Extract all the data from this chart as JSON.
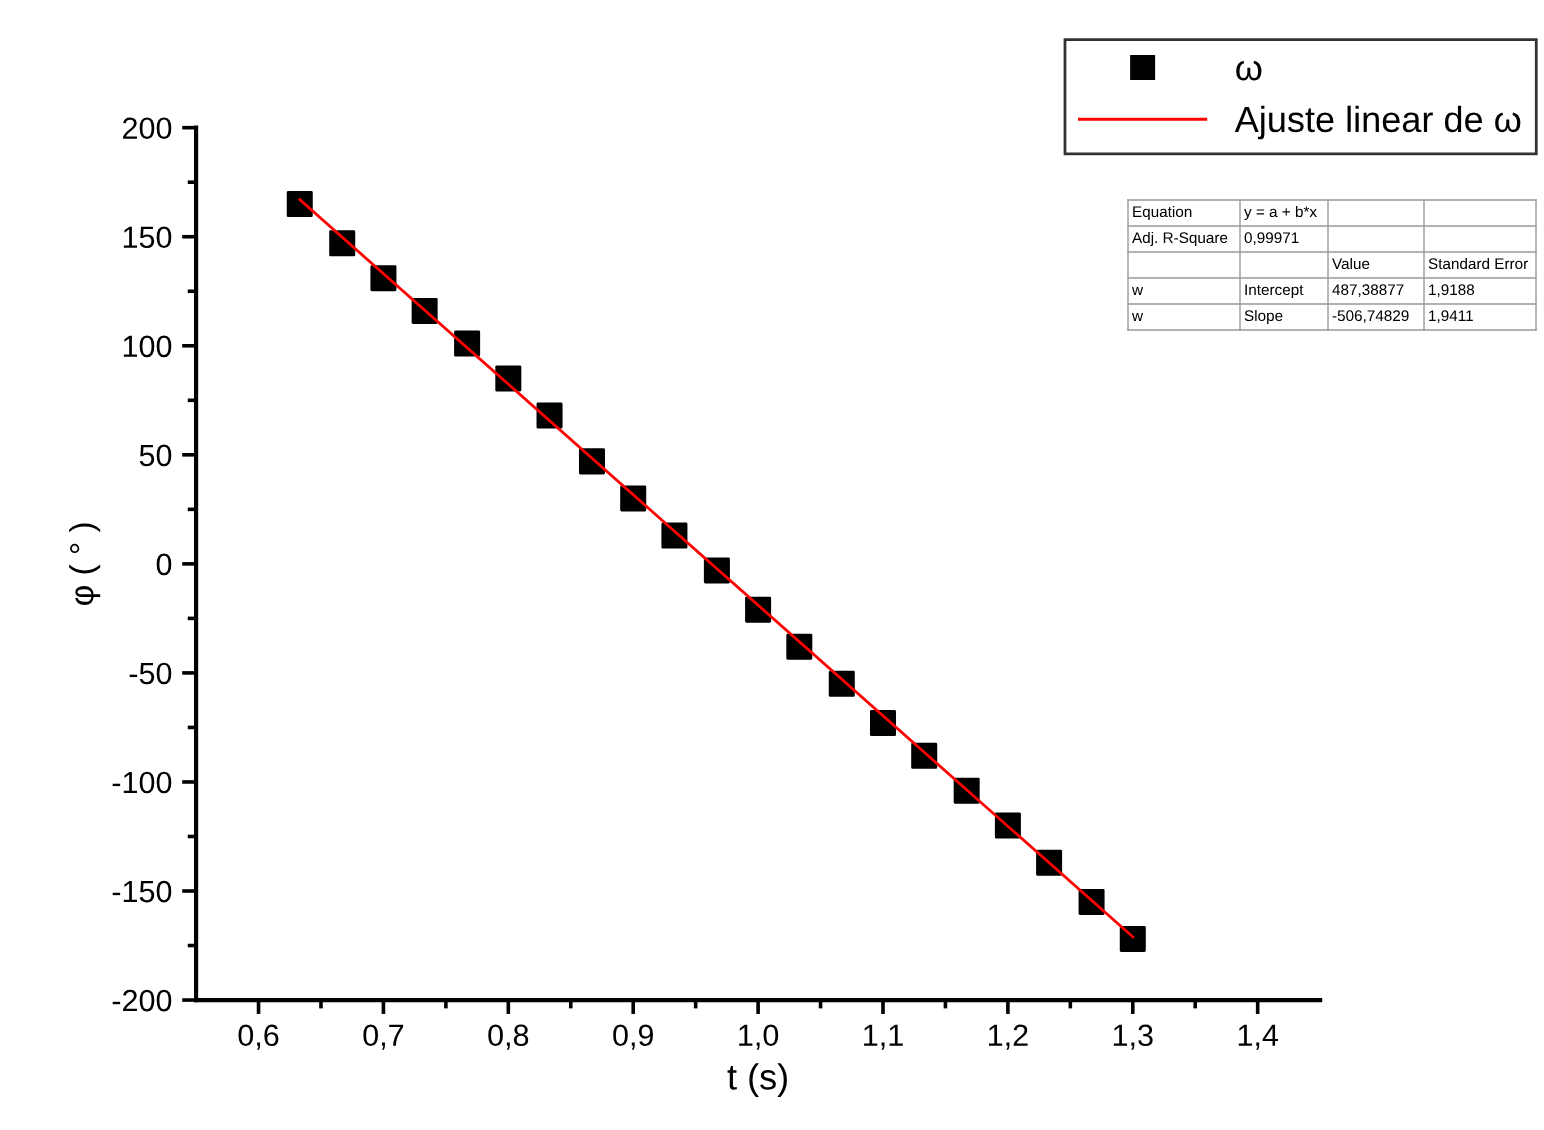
{
  "chart_data": {
    "type": "scatter",
    "xlabel": "t (s)",
    "ylabel": "φ ( ° )",
    "xlim": [
      0.55,
      1.45
    ],
    "ylim": [
      -200,
      200
    ],
    "xticks": [
      {
        "value": 0.6,
        "label": "0,6"
      },
      {
        "value": 0.7,
        "label": "0,7"
      },
      {
        "value": 0.8,
        "label": "0,8"
      },
      {
        "value": 0.9,
        "label": "0,9"
      },
      {
        "value": 1.0,
        "label": "1,0"
      },
      {
        "value": 1.1,
        "label": "1,1"
      },
      {
        "value": 1.2,
        "label": "1,2"
      },
      {
        "value": 1.3,
        "label": "1,3"
      },
      {
        "value": 1.4,
        "label": "1,4"
      }
    ],
    "yticks": [
      -200,
      -150,
      -100,
      -50,
      0,
      50,
      100,
      150,
      200
    ],
    "legend": "top right",
    "grid": false,
    "series": [
      {
        "name": "ω",
        "marker": "square",
        "color": "#000000",
        "x": [
          0.633,
          0.667,
          0.7,
          0.733,
          0.767,
          0.8,
          0.833,
          0.867,
          0.9,
          0.933,
          0.967,
          1.0,
          1.033,
          1.067,
          1.1,
          1.133,
          1.167,
          1.2,
          1.233,
          1.267,
          1.3
        ],
        "values": [
          165,
          147,
          131,
          116,
          101,
          85,
          68,
          47,
          30,
          13,
          -3,
          -21,
          -38,
          -55,
          -73,
          -88,
          -104,
          -120,
          -137,
          -155,
          -172
        ]
      },
      {
        "name": "Ajuste linear de ω",
        "type": "line",
        "marker": "none",
        "color": "#ff0000",
        "x": [
          0.633,
          1.3
        ],
        "values": [
          167,
          -171
        ]
      }
    ],
    "annotations": [
      "Equation",
      "y = a + b*x",
      null,
      null,
      "Adj. R-Square",
      "0,99971",
      null,
      null,
      null,
      null,
      "Value",
      "Standard Error",
      "w",
      "Intercept",
      "487,38877",
      "1,9188",
      "w",
      "Slope",
      "-506,74829",
      "1,9411"
    ]
  }
}
